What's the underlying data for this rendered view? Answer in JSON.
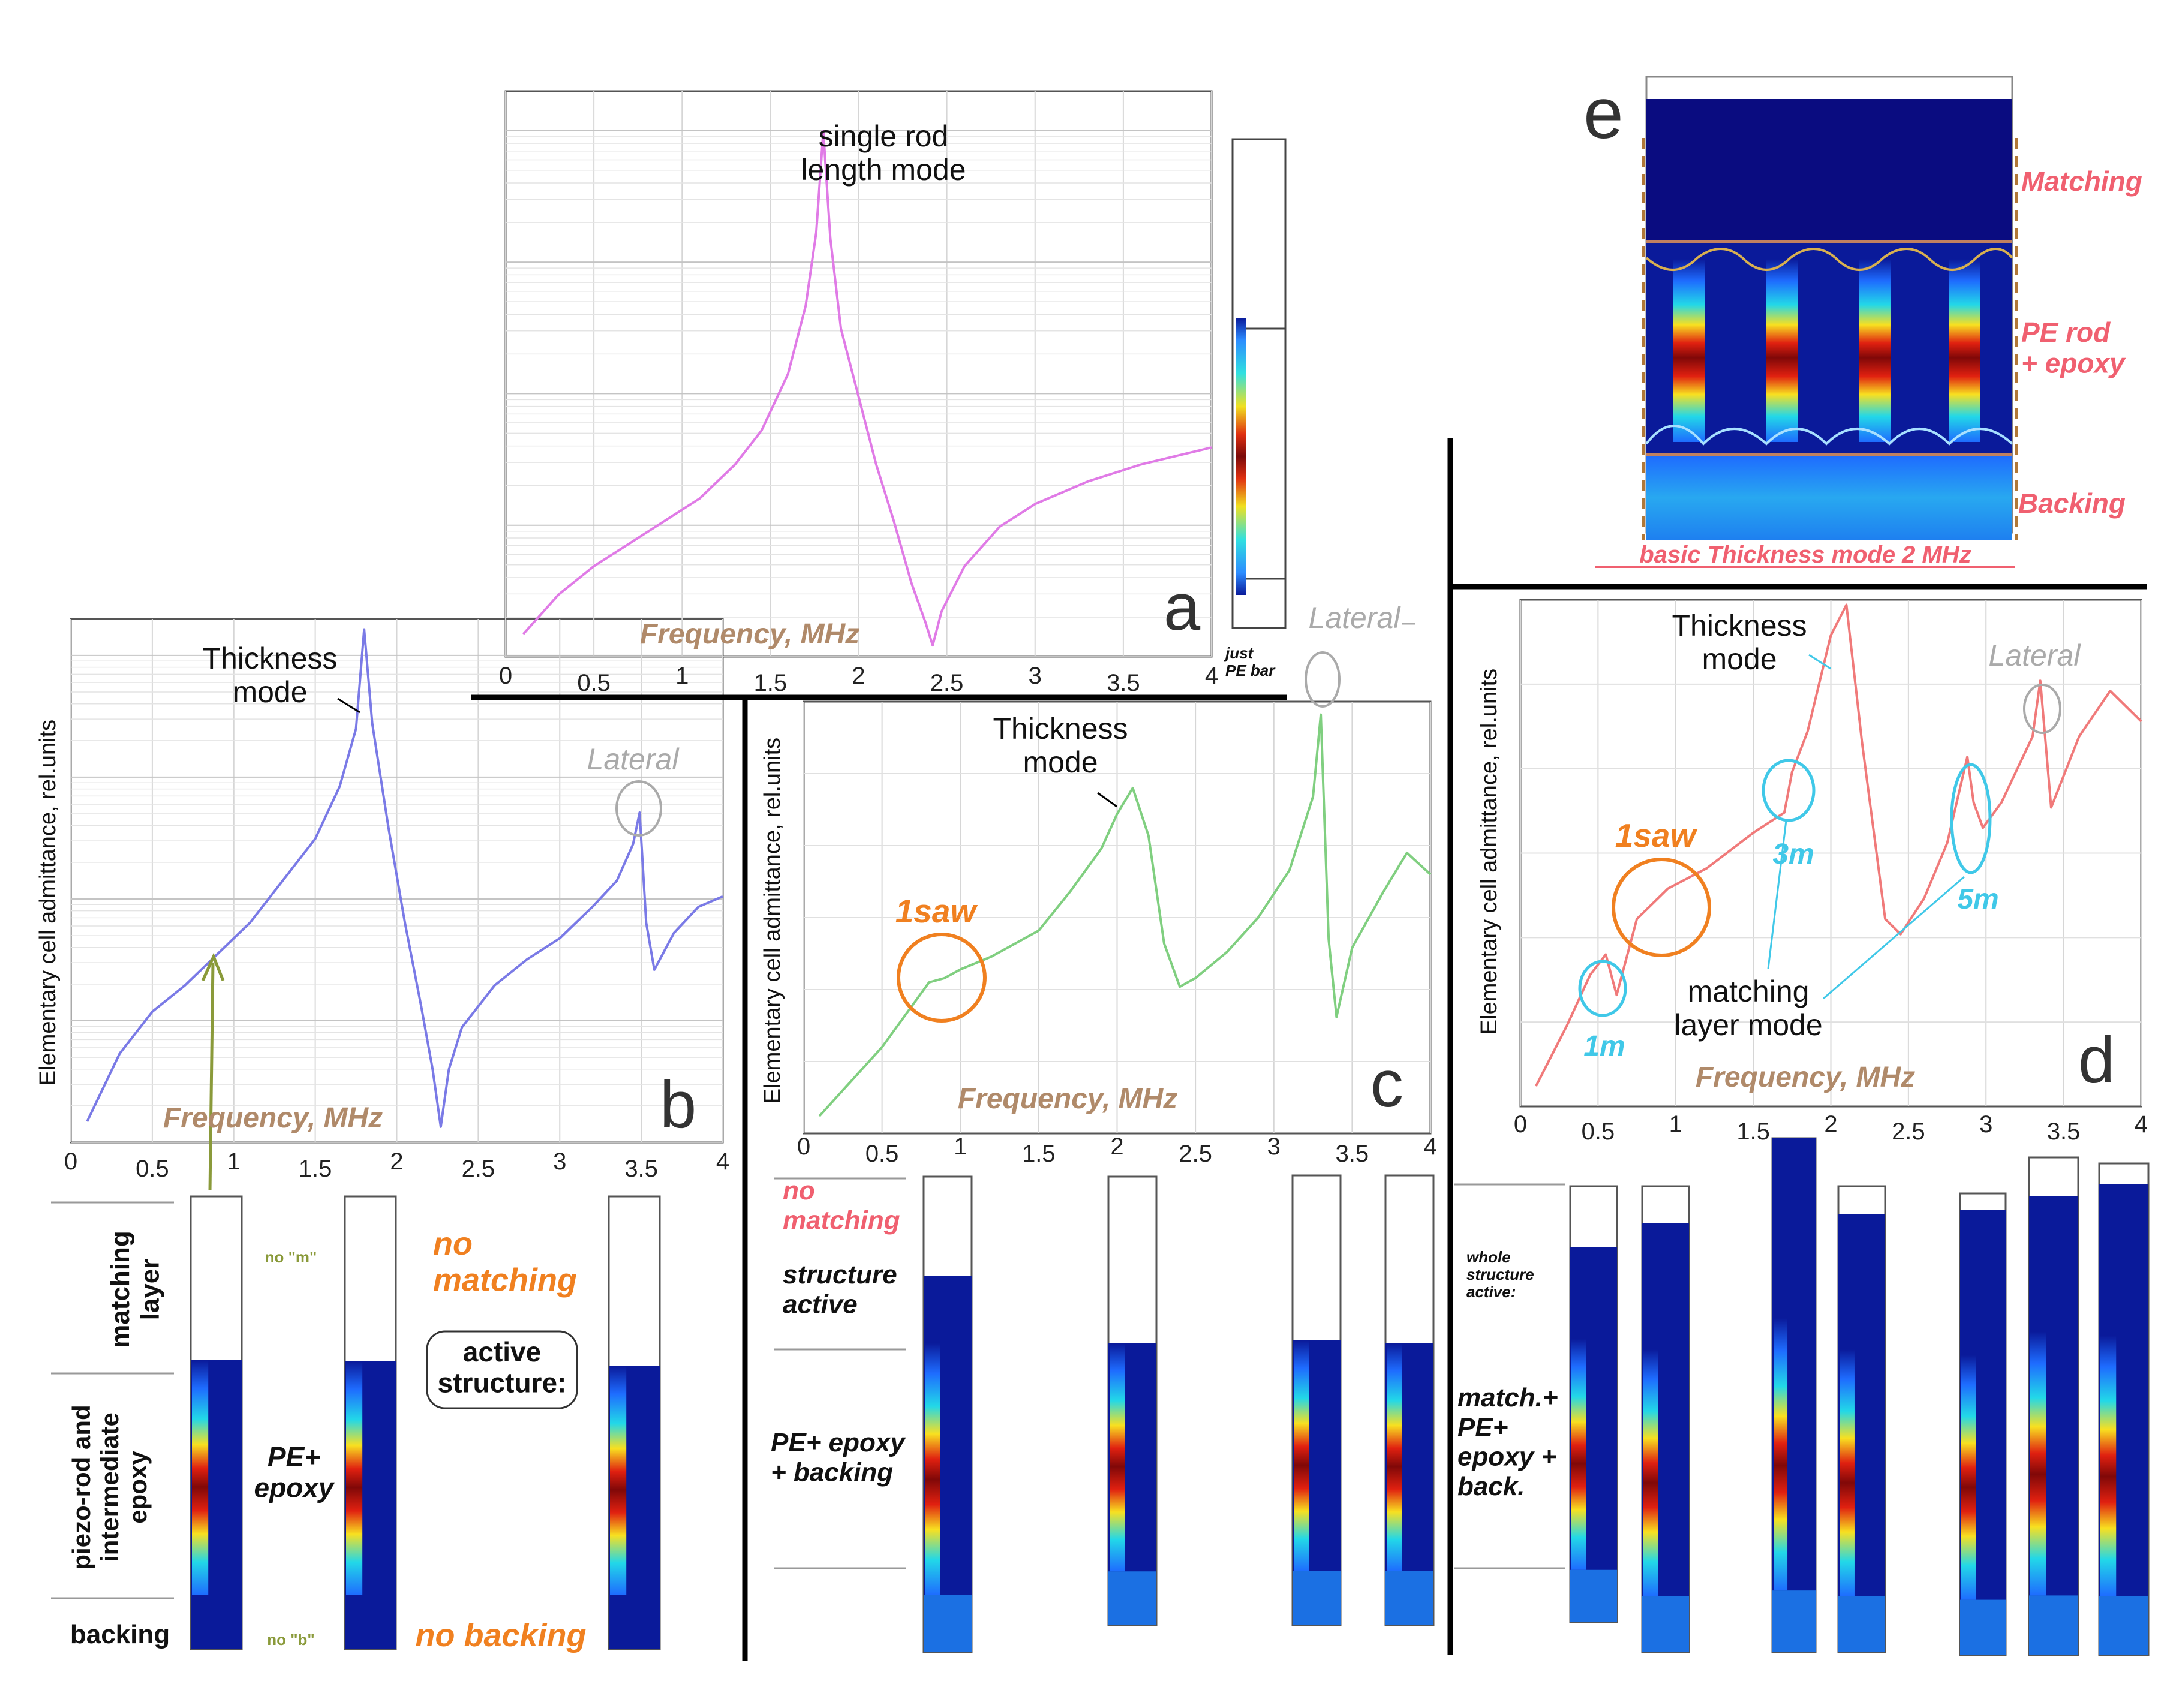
{
  "colors": {
    "a_curve": "#e07be6",
    "b_curve": "#7a7ae6",
    "c_curve": "#80cf80",
    "d_curve": "#f07a7a",
    "freq_label": "#b08a6a",
    "lateral": "#aaaaaa",
    "orange": "#f08020",
    "cyan": "#40c8e8",
    "pink_label": "#f06070",
    "olive": "#8a9a3a"
  },
  "panel_a": {
    "letter": "a",
    "ylabel": "",
    "xlabel": "Frequency, MHz",
    "annotation": "single rod\nlength mode",
    "colorbar_caption": "just\nPE bar"
  },
  "panel_b": {
    "letter": "b",
    "ylabel": "Elementary cell admittance, rel.units",
    "xlabel": "Frequency, MHz",
    "thickness": "Thickness\nmode",
    "lateral": "Lateral",
    "struct_labels": {
      "matching": "matching\nlayer",
      "piezo": "piezo-rod and\nintermediate\nepoxy",
      "backing": "backing",
      "no_m": "no \"m\"",
      "no_b": "no \"b\"",
      "pe_epoxy": "PE+\nepoxy",
      "no_matching": "no\nmatching",
      "active": "active\nstructure:",
      "no_backing": "no backing"
    }
  },
  "panel_c": {
    "letter": "c",
    "ylabel": "Elementary cell admittance, rel.units",
    "xlabel": "Frequency, MHz",
    "thickness": "Thickness\nmode",
    "lateral": "Lateral",
    "saw": "1saw",
    "struct_labels": {
      "no_matching": "no\nmatching",
      "structure_active": "structure\nactive",
      "pe_epoxy_backing": "PE+ epoxy\n+ backing"
    }
  },
  "panel_d": {
    "letter": "d",
    "ylabel": "Elementary cell admittance, rel.units",
    "xlabel": "Frequency, MHz",
    "thickness": "Thickness\nmode",
    "lateral": "Lateral",
    "saw": "1saw",
    "m1": "1m",
    "m3": "3m",
    "m5": "5m",
    "matching_mode": "matching\nlayer mode",
    "struct_labels": {
      "whole": "whole\nstructure\nactive:",
      "match": "match.+\nPE+\nepoxy +\nback."
    }
  },
  "panel_e": {
    "letter": "e",
    "matching": "Matching",
    "pe_rod": "PE rod\n+ epoxy",
    "backing": "Backing",
    "caption": "basic Thickness  mode  2 MHz"
  },
  "chart_data": [
    {
      "panel": "a",
      "type": "line",
      "xlabel": "Frequency, MHz",
      "xlim": [
        0,
        4
      ],
      "xticks": [
        0,
        0.5,
        1,
        1.5,
        2,
        2.5,
        3,
        3.5,
        4
      ],
      "yscale": "log",
      "grid": true,
      "series": [
        {
          "x": [
            0.1,
            0.3,
            0.5,
            0.7,
            0.9,
            1.1,
            1.3,
            1.45,
            1.6,
            1.7,
            1.76,
            1.8,
            1.84,
            1.9,
            2.0,
            2.1,
            2.2,
            2.3,
            2.38,
            2.42,
            2.47,
            2.6,
            2.8,
            3.0,
            3.3,
            3.6,
            4.0
          ],
          "y": [
            0.04,
            0.11,
            0.16,
            0.2,
            0.24,
            0.28,
            0.34,
            0.4,
            0.5,
            0.62,
            0.75,
            0.93,
            0.74,
            0.58,
            0.46,
            0.34,
            0.24,
            0.13,
            0.06,
            0.02,
            0.08,
            0.16,
            0.23,
            0.27,
            0.31,
            0.34,
            0.37
          ]
        }
      ]
    },
    {
      "panel": "b",
      "type": "line",
      "xlabel": "Frequency, MHz",
      "ylabel": "Elementary cell admittance, rel.units",
      "xlim": [
        0,
        4
      ],
      "xticks": [
        0,
        0.5,
        1,
        1.5,
        2,
        2.5,
        3,
        3.5,
        4
      ],
      "yscale": "log",
      "grid": true,
      "series": [
        {
          "x": [
            0.1,
            0.3,
            0.5,
            0.7,
            0.9,
            1.1,
            1.3,
            1.5,
            1.65,
            1.75,
            1.8,
            1.85,
            1.95,
            2.05,
            2.15,
            2.22,
            2.27,
            2.32,
            2.4,
            2.6,
            2.8,
            3.0,
            3.2,
            3.35,
            3.45,
            3.49,
            3.53,
            3.58,
            3.7,
            3.85,
            4.0
          ],
          "y": [
            0.04,
            0.17,
            0.25,
            0.3,
            0.36,
            0.42,
            0.5,
            0.58,
            0.68,
            0.79,
            0.98,
            0.8,
            0.6,
            0.42,
            0.26,
            0.14,
            0.03,
            0.14,
            0.22,
            0.3,
            0.35,
            0.39,
            0.45,
            0.5,
            0.57,
            0.63,
            0.42,
            0.33,
            0.4,
            0.45,
            0.47
          ]
        }
      ]
    },
    {
      "panel": "c",
      "type": "line",
      "xlabel": "Frequency, MHz",
      "ylabel": "Elementary cell admittance, rel.units",
      "xlim": [
        0,
        4
      ],
      "xticks": [
        0,
        0.5,
        1,
        1.5,
        2,
        2.5,
        3,
        3.5,
        4
      ],
      "grid": true,
      "series": [
        {
          "x": [
            0.1,
            0.3,
            0.5,
            0.7,
            0.8,
            0.9,
            1.0,
            1.2,
            1.5,
            1.7,
            1.9,
            2.0,
            2.1,
            2.2,
            2.3,
            2.4,
            2.5,
            2.7,
            2.9,
            3.1,
            3.25,
            3.3,
            3.35,
            3.4,
            3.5,
            3.7,
            3.85,
            4.0
          ],
          "y": [
            0.04,
            0.12,
            0.2,
            0.3,
            0.35,
            0.36,
            0.38,
            0.41,
            0.47,
            0.56,
            0.66,
            0.74,
            0.8,
            0.69,
            0.44,
            0.34,
            0.36,
            0.42,
            0.5,
            0.61,
            0.78,
            0.97,
            0.45,
            0.27,
            0.43,
            0.56,
            0.65,
            0.6
          ]
        }
      ]
    },
    {
      "panel": "d",
      "type": "line",
      "xlabel": "Frequency, MHz",
      "ylabel": "Elementary cell admittance, rel.units",
      "xlim": [
        0,
        4
      ],
      "xticks": [
        0,
        0.5,
        1,
        1.5,
        2,
        2.5,
        3,
        3.5,
        4
      ],
      "grid": true,
      "series": [
        {
          "x": [
            0.1,
            0.3,
            0.45,
            0.55,
            0.62,
            0.75,
            0.95,
            1.2,
            1.5,
            1.7,
            1.75,
            1.85,
            2.0,
            2.1,
            2.2,
            2.35,
            2.45,
            2.6,
            2.75,
            2.88,
            2.92,
            2.98,
            3.1,
            3.3,
            3.35,
            3.42,
            3.6,
            3.8,
            4.0
          ],
          "y": [
            0.04,
            0.16,
            0.26,
            0.3,
            0.22,
            0.37,
            0.43,
            0.47,
            0.54,
            0.58,
            0.66,
            0.74,
            0.93,
            0.99,
            0.72,
            0.37,
            0.34,
            0.41,
            0.52,
            0.69,
            0.6,
            0.55,
            0.6,
            0.73,
            0.84,
            0.59,
            0.73,
            0.82,
            0.76
          ]
        }
      ]
    }
  ]
}
